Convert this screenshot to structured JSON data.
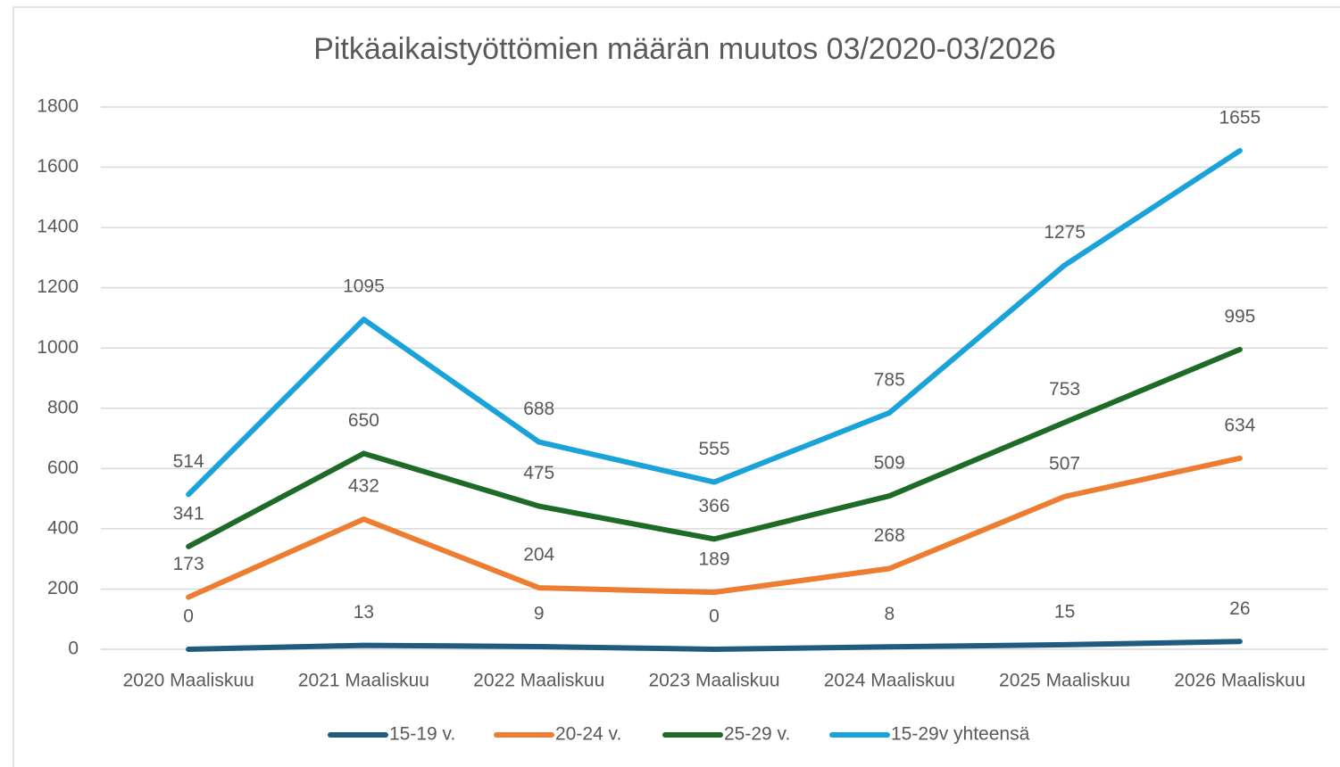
{
  "chart_data": {
    "type": "line",
    "title": "Pitkäaikaistyöttömien määrän muutos 03/2020-03/2026",
    "categories": [
      "2020 Maaliskuu",
      "2021 Maaliskuu",
      "2022 Maaliskuu",
      "2023 Maaliskuu",
      "2024 Maaliskuu",
      "2025 Maaliskuu",
      "2026 Maaliskuu"
    ],
    "series": [
      {
        "name": "15-19 v.",
        "color": "#1f5c80",
        "values": [
          0,
          13,
          9,
          0,
          8,
          15,
          26
        ]
      },
      {
        "name": "20-24 v.",
        "color": "#ed7d31",
        "values": [
          173,
          432,
          204,
          189,
          268,
          507,
          634
        ]
      },
      {
        "name": "25-29 v.",
        "color": "#1e6b28",
        "values": [
          341,
          650,
          475,
          366,
          509,
          753,
          995
        ]
      },
      {
        "name": "15-29v yhteensä",
        "color": "#1aa3d9",
        "values": [
          514,
          1095,
          688,
          555,
          785,
          1275,
          1655
        ]
      }
    ],
    "ylim": [
      0,
      1800
    ],
    "yticks": [
      0,
      200,
      400,
      600,
      800,
      1000,
      1200,
      1400,
      1600,
      1800
    ],
    "grid": true,
    "legend": "bottom"
  }
}
